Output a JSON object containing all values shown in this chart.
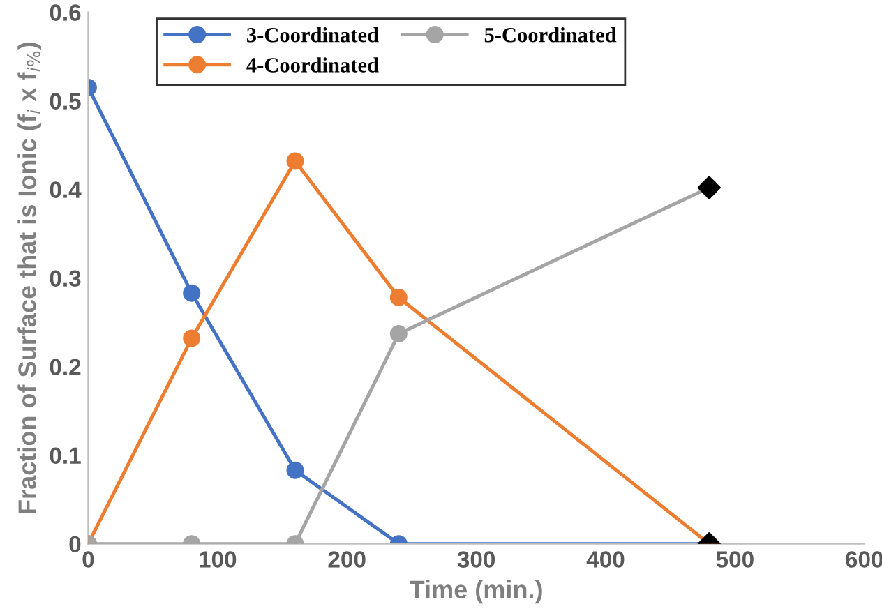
{
  "chart_data": {
    "type": "line",
    "xlabel": "Time (min.)",
    "ylabel": "Fraction of Surface that is Ionic (f$_{i}$ x f$_{i%}$)",
    "xlim": [
      0,
      600
    ],
    "xticks": [
      0,
      100,
      200,
      300,
      400,
      500,
      600
    ],
    "ylim": [
      0,
      0.6
    ],
    "yticks": [
      0,
      0.1,
      0.2,
      0.3,
      0.4,
      0.5,
      0.6
    ],
    "grid": false,
    "legend": "top",
    "marker": "circle",
    "line_style": "solid",
    "series": [
      {
        "name": "3-Coordinated",
        "color": "#4472c4",
        "x": [
          0,
          80,
          160,
          240,
          480
        ],
        "values": [
          0.515,
          0.283,
          0.083,
          0,
          0
        ]
      },
      {
        "name": "4-Coordinated",
        "color": "#ed7d31",
        "x": [
          0,
          80,
          160,
          240,
          480
        ],
        "values": [
          0,
          0.232,
          0.432,
          0.278,
          0
        ]
      },
      {
        "name": "5-Coordinated",
        "color": "#a5a5a5",
        "x": [
          0,
          80,
          160,
          240,
          480
        ],
        "values": [
          0,
          0,
          0,
          0.237,
          0.402
        ]
      },
      {
        "type": "scatter",
        "marker": "diamond",
        "color": "#000000",
        "x": [
          480,
          480
        ],
        "values": [
          0.402,
          0
        ]
      }
    ]
  }
}
